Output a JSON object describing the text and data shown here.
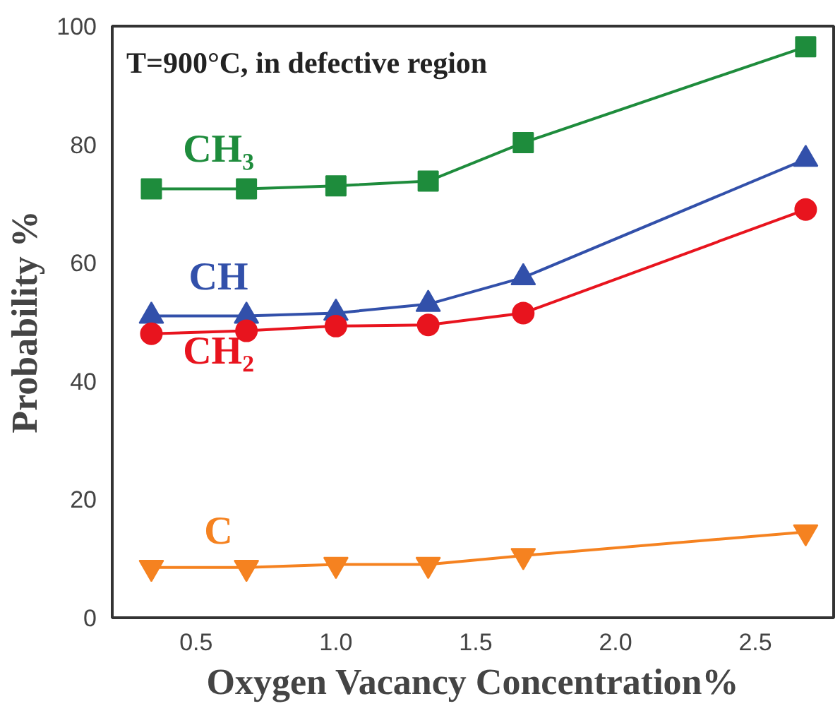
{
  "chart_data": {
    "type": "line",
    "xlabel": "Oxygen Vacancy Concentration%",
    "ylabel": "Probability %",
    "annotations": [
      "T=900°C,  in defective region"
    ],
    "x": [
      0.34,
      0.68,
      1.0,
      1.33,
      1.67,
      2.68
    ],
    "xlim": [
      0.2,
      2.78
    ],
    "ylim": [
      0,
      100
    ],
    "xticks": [
      {
        "value": 0.5,
        "label": "0.5"
      },
      {
        "value": 1.0,
        "label": "1.0"
      },
      {
        "value": 1.5,
        "label": "1.5"
      },
      {
        "value": 2.0,
        "label": "2.0"
      },
      {
        "value": 2.5,
        "label": "2.5"
      }
    ],
    "yticks": [
      0,
      20,
      40,
      60,
      80,
      100
    ],
    "grid": false,
    "legend": false,
    "series": [
      {
        "name": "CH₃",
        "color": "#1e8c3c",
        "marker": "square",
        "values": [
          72.5,
          72.5,
          73,
          73.8,
          80.3,
          96.5
        ]
      },
      {
        "name": "CH",
        "color": "#3250aa",
        "marker": "triangle",
        "values": [
          51,
          51,
          51.5,
          53,
          57.5,
          77.5
        ]
      },
      {
        "name": "CH₂",
        "color": "#e8141e",
        "marker": "circle",
        "values": [
          48,
          48.5,
          49.3,
          49.5,
          51.5,
          69
        ]
      },
      {
        "name": "C",
        "color": "#f58220",
        "marker": "triangle",
        "values": [
          8.5,
          8.5,
          9,
          9,
          10.5,
          14.5
        ]
      }
    ]
  }
}
